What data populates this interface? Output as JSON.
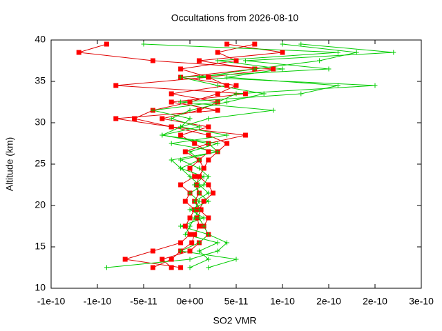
{
  "chart_data": {
    "type": "line",
    "title": "Occultations from 2026-08-10",
    "x_label": "SO2 VMR",
    "y_label": "Altitude (km)",
    "xlim": [
      -1.5e-10,
      2.5e-10
    ],
    "xticks": [
      {
        "value": -1.5e-10,
        "label": "-1e-10"
      },
      {
        "value": -1e-10,
        "label": "-1e-10"
      },
      {
        "value": -5e-11,
        "label": "-5e-11"
      },
      {
        "value": 0,
        "label": "0e+00"
      },
      {
        "value": 5e-11,
        "label": "5e-11"
      },
      {
        "value": 1e-10,
        "label": "1e-10"
      },
      {
        "value": 1.5e-10,
        "label": "2e-10"
      },
      {
        "value": 2e-10,
        "label": "2e-10"
      },
      {
        "value": 2.5e-10,
        "label": "3e-10"
      }
    ],
    "ylim": [
      10,
      40
    ],
    "yticks": [
      10,
      15,
      20,
      25,
      30,
      35,
      40
    ],
    "y": [
      12.5,
      13.5,
      14.5,
      15.5,
      16.5,
      17.5,
      18.5,
      19.5,
      20.5,
      21.5,
      22.5,
      23.5,
      24.5,
      25.5,
      26.5,
      27.5,
      28.5,
      29.5,
      30.5,
      31.5,
      32.5,
      33.5,
      34.5,
      35.5,
      36.5,
      37.5,
      38.5,
      39.5
    ],
    "series": [
      {
        "color": "#e00000",
        "marker": "square",
        "x": [
          -4e-11,
          -2e-11,
          -1e-11,
          2e-12,
          5e-12,
          1e-11,
          8e-12,
          1.2e-11,
          5e-12,
          1e-11,
          7e-12,
          1e-11,
          1.5e-11,
          1e-11,
          2e-11,
          5e-12,
          -1e-11,
          2e-11,
          -3e-11,
          1e-11,
          3e-11,
          -2e-11,
          4e-11,
          2e-11,
          -1e-11,
          5e-11,
          3e-11,
          7e-11
        ]
      },
      {
        "color": "#e00000",
        "marker": "square",
        "x": [
          -2e-11,
          -3e-11,
          0,
          1e-11,
          2e-11,
          1.5e-11,
          2e-11,
          1e-11,
          1.5e-11,
          2.5e-11,
          2e-11,
          1e-11,
          1.5e-11,
          2e-11,
          3e-11,
          4e-11,
          2e-11,
          -2e-11,
          -6e-11,
          -4e-11,
          0,
          3e-11,
          5e-11,
          -1e-11,
          7e-11,
          1e-11,
          1e-10,
          4e-11
        ]
      },
      {
        "color": "#e00000",
        "marker": "square",
        "x": [
          -1e-11,
          -7e-11,
          -4e-11,
          -1e-11,
          0,
          -5e-12,
          0,
          5e-12,
          -5e-12,
          0,
          -1e-11,
          5e-12,
          0,
          1e-11,
          -5e-12,
          2e-11,
          6e-11,
          -2e-11,
          -8e-11,
          3e-11,
          -2e-11,
          6e-11,
          -8e-11,
          2e-11,
          9e-11,
          -4e-11,
          -1.2e-10,
          -9e-11
        ]
      },
      {
        "color": "#00cc00",
        "marker": "cross",
        "x": [
          -9e-11,
          0,
          3e-11,
          4e-11,
          2e-11,
          1.5e-11,
          1e-11,
          5e-12,
          1e-11,
          0,
          1.5e-11,
          2e-11,
          1e-11,
          -1e-11,
          3e-11,
          2e-11,
          -3e-11,
          1e-11,
          -2e-11,
          0,
          4e-11,
          8e-11,
          3e-11,
          -1e-11,
          1.5e-10,
          6e-11,
          2.2e-10,
          1.2e-10
        ]
      },
      {
        "color": "#00cc00",
        "marker": "cross",
        "x": [
          0,
          2e-11,
          1e-11,
          3e-11,
          -5e-12,
          0,
          5e-12,
          1e-11,
          5e-12,
          2e-11,
          1e-11,
          0,
          -1e-11,
          1e-11,
          0,
          3e-11,
          -3e-11,
          -1e-11,
          2e-11,
          9e-11,
          -1e-11,
          1.2e-10,
          1.6e-10,
          4e-11,
          1e-10,
          3e-11,
          1.6e-10,
          -5e-11
        ]
      },
      {
        "color": "#00cc00",
        "marker": "cross",
        "x": [
          2e-11,
          5e-11,
          -1e-11,
          1e-11,
          2e-11,
          -1e-11,
          1.5e-11,
          0,
          2e-11,
          1e-11,
          5e-12,
          1.5e-11,
          -1e-11,
          -2e-11,
          3e-11,
          -2e-11,
          4e-11,
          -1e-11,
          0,
          -4e-11,
          3e-11,
          5e-11,
          2e-10,
          1e-11,
          7e-11,
          1.4e-10,
          1.8e-10,
          1e-10
        ]
      }
    ]
  }
}
